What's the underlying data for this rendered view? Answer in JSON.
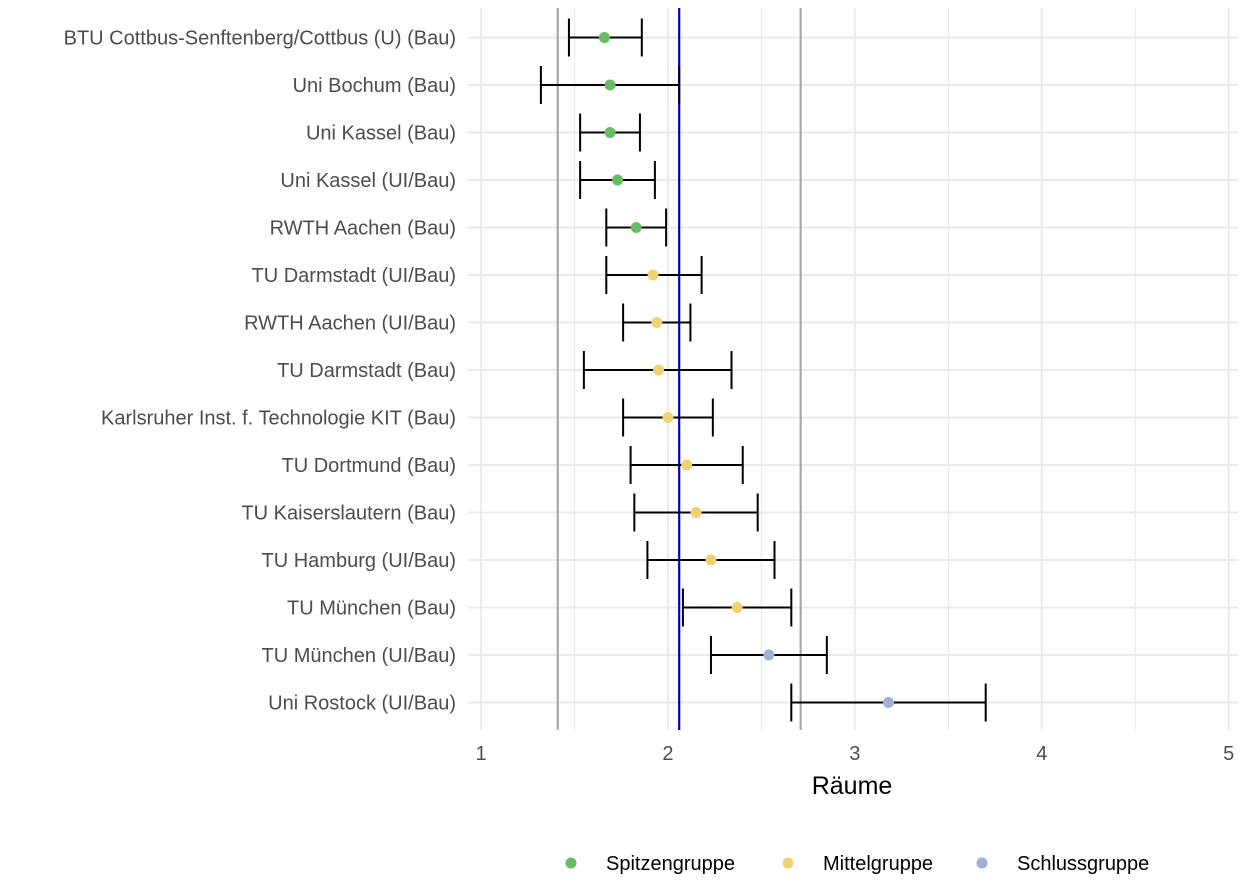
{
  "chart_data": {
    "type": "errorbar-dot",
    "xlabel": "Räume",
    "xlim": [
      0.93,
      5.05
    ],
    "xticks": [
      1,
      2,
      3,
      4,
      5
    ],
    "grid": true,
    "legend_position": "bottom",
    "reference_lines": {
      "lower": 1.41,
      "mean": 2.06,
      "upper": 2.71
    },
    "groups": [
      {
        "name": "Spitzengruppe",
        "color": "#66bd63"
      },
      {
        "name": "Mittelgruppe",
        "color": "#f0d273"
      },
      {
        "name": "Schlussgruppe",
        "color": "#9db2d4"
      }
    ],
    "colors": {
      "reference": "#a8a8a8",
      "mean": "#0000cc",
      "errorbar": "#000000",
      "grid": "#ebebeb"
    },
    "points": [
      {
        "label": "BTU Cottbus-Senftenberg/Cottbus (U) (Bau)",
        "value": 1.66,
        "lower": 1.47,
        "upper": 1.86,
        "group": "Spitzengruppe"
      },
      {
        "label": "Uni Bochum (Bau)",
        "value": 1.69,
        "lower": 1.32,
        "upper": 2.06,
        "group": "Spitzengruppe"
      },
      {
        "label": "Uni Kassel (Bau)",
        "value": 1.69,
        "lower": 1.53,
        "upper": 1.85,
        "group": "Spitzengruppe"
      },
      {
        "label": "Uni Kassel (UI/Bau)",
        "value": 1.73,
        "lower": 1.53,
        "upper": 1.93,
        "group": "Spitzengruppe"
      },
      {
        "label": "RWTH Aachen (Bau)",
        "value": 1.83,
        "lower": 1.67,
        "upper": 1.99,
        "group": "Spitzengruppe"
      },
      {
        "label": "TU Darmstadt (UI/Bau)",
        "value": 1.92,
        "lower": 1.67,
        "upper": 2.18,
        "group": "Mittelgruppe"
      },
      {
        "label": "RWTH Aachen (UI/Bau)",
        "value": 1.94,
        "lower": 1.76,
        "upper": 2.12,
        "group": "Mittelgruppe"
      },
      {
        "label": "TU Darmstadt (Bau)",
        "value": 1.95,
        "lower": 1.55,
        "upper": 2.34,
        "group": "Mittelgruppe"
      },
      {
        "label": "Karlsruher Inst. f. Technologie KIT (Bau)",
        "value": 2.0,
        "lower": 1.76,
        "upper": 2.24,
        "group": "Mittelgruppe"
      },
      {
        "label": "TU Dortmund (Bau)",
        "value": 2.1,
        "lower": 1.8,
        "upper": 2.4,
        "group": "Mittelgruppe"
      },
      {
        "label": "TU Kaiserslautern (Bau)",
        "value": 2.15,
        "lower": 1.82,
        "upper": 2.48,
        "group": "Mittelgruppe"
      },
      {
        "label": "TU Hamburg (UI/Bau)",
        "value": 2.23,
        "lower": 1.89,
        "upper": 2.57,
        "group": "Mittelgruppe"
      },
      {
        "label": "TU München (Bau)",
        "value": 2.37,
        "lower": 2.08,
        "upper": 2.66,
        "group": "Mittelgruppe"
      },
      {
        "label": "TU München (UI/Bau)",
        "value": 2.54,
        "lower": 2.23,
        "upper": 2.85,
        "group": "Schlussgruppe"
      },
      {
        "label": "Uni Rostock (UI/Bau)",
        "value": 3.18,
        "lower": 2.66,
        "upper": 3.7,
        "group": "Schlussgruppe"
      }
    ]
  }
}
